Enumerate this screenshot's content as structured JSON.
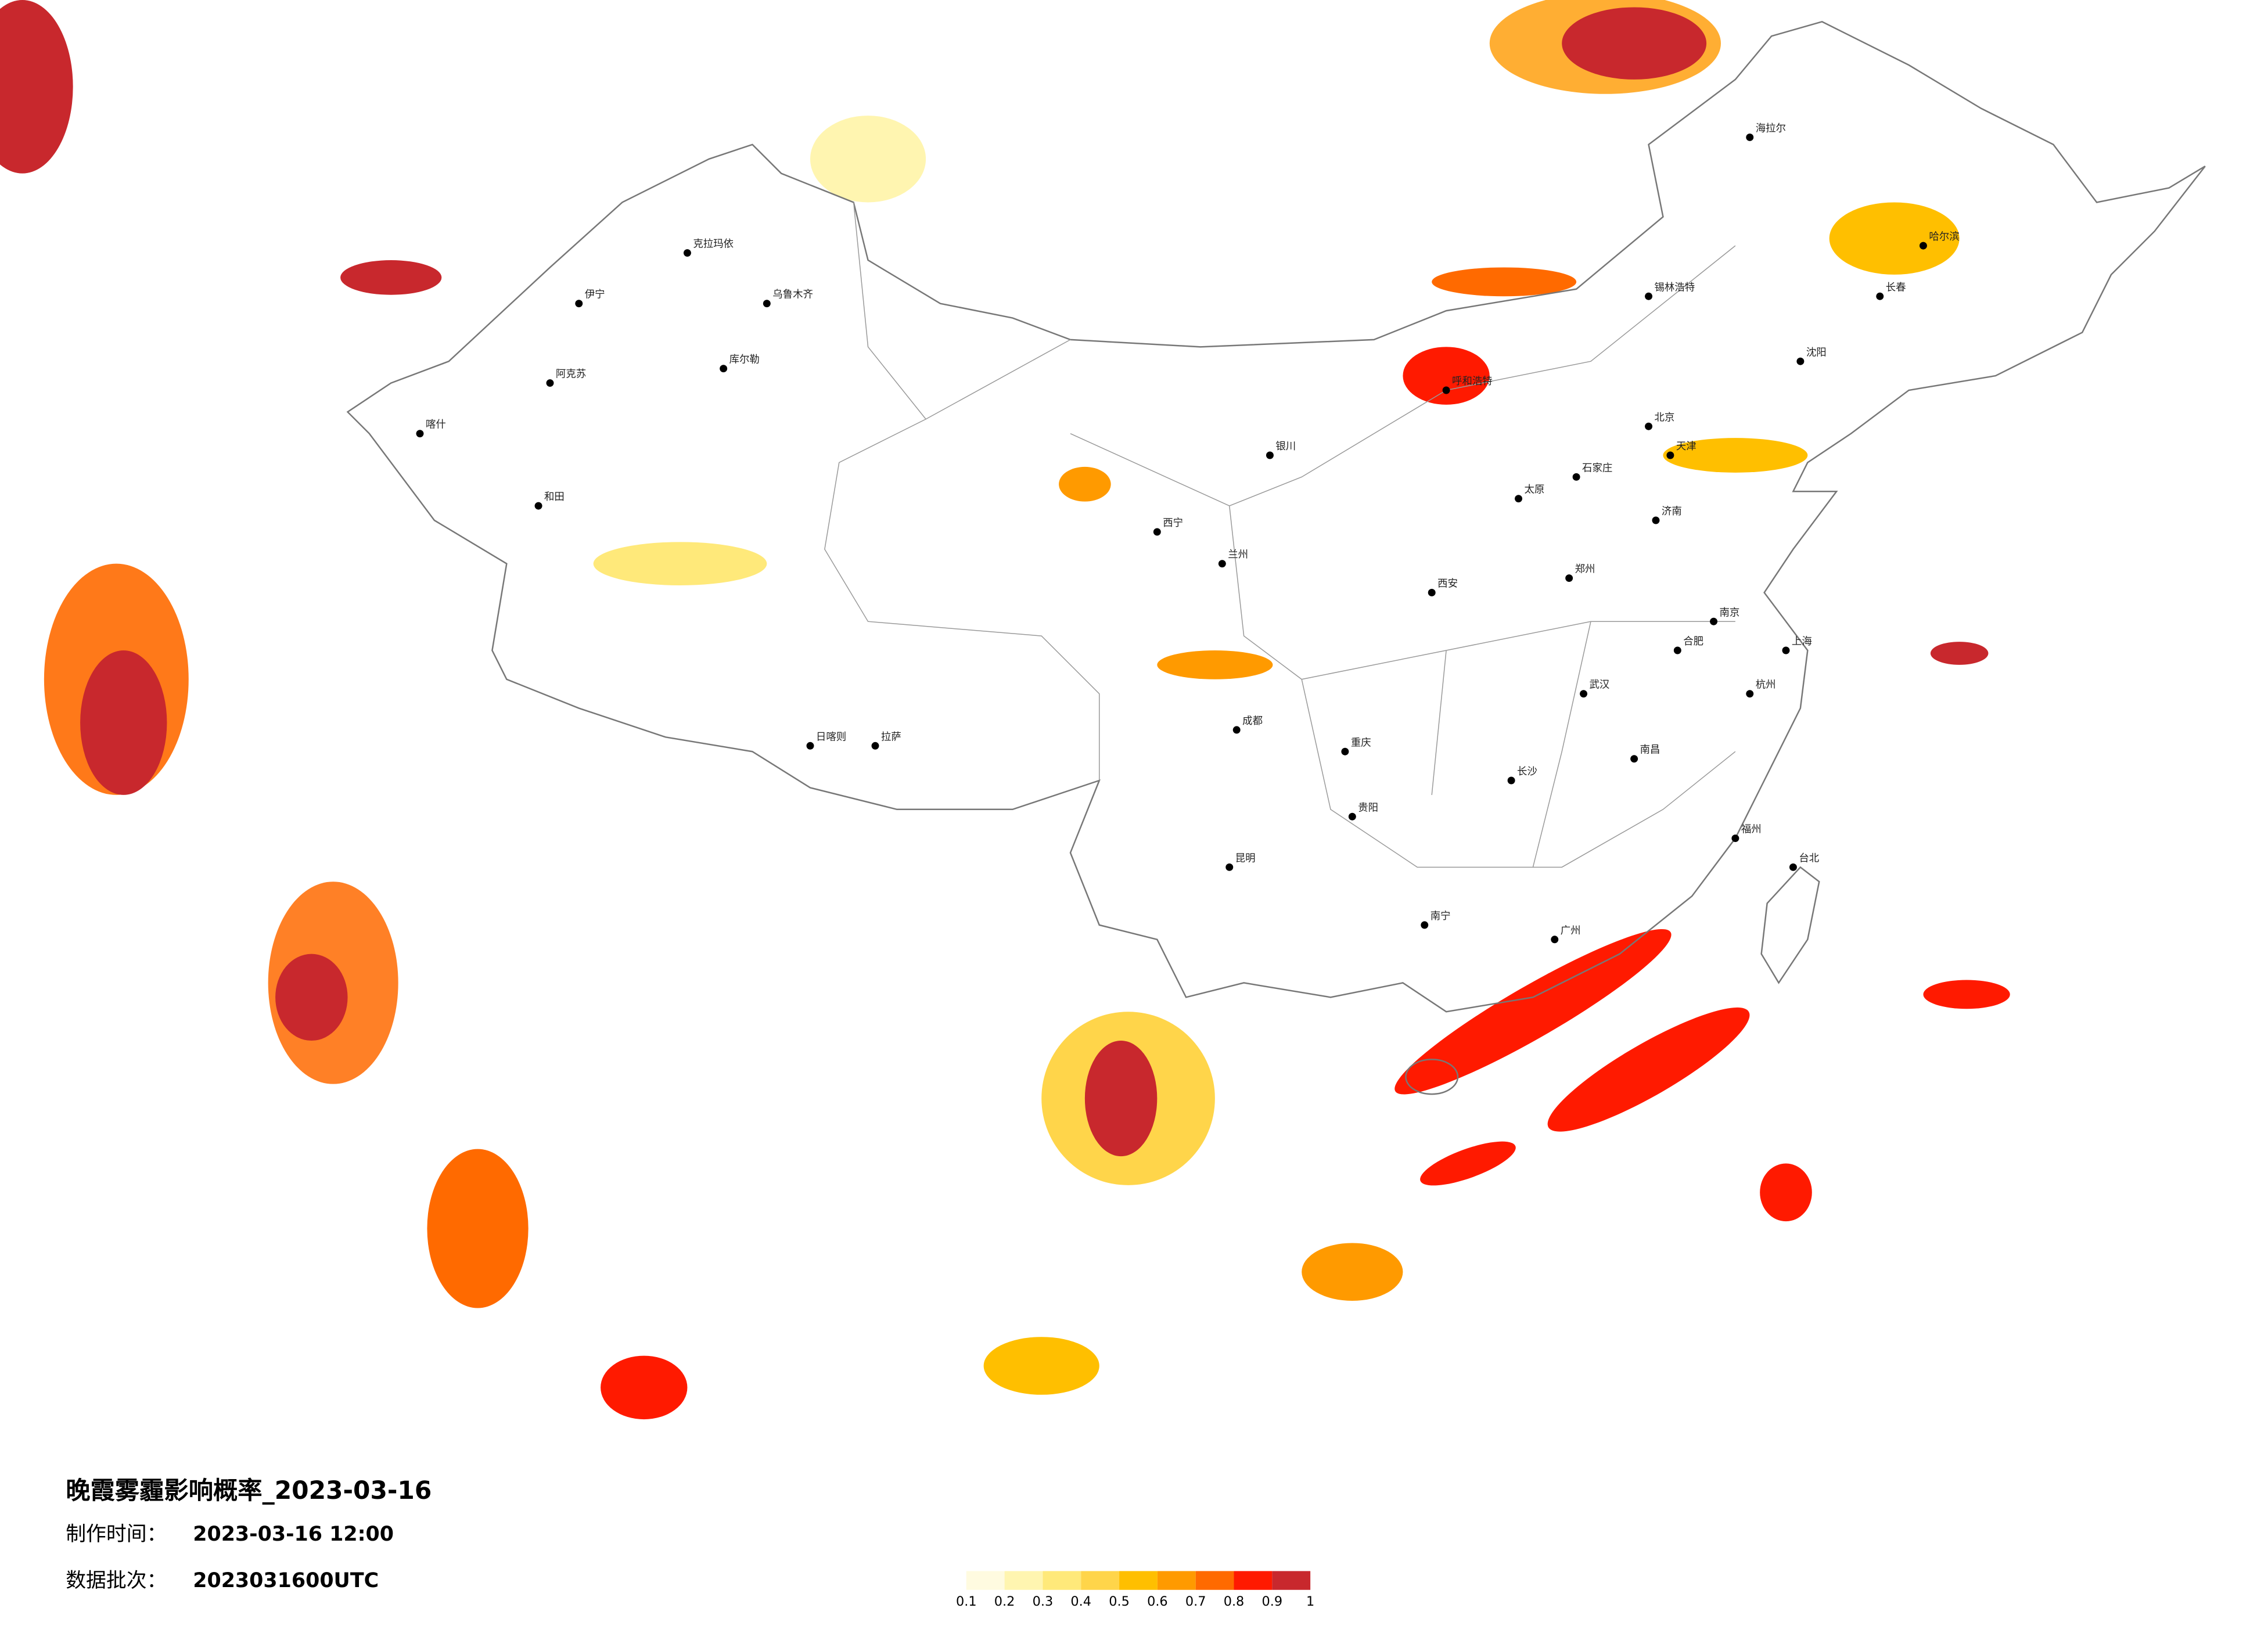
{
  "title": "晚霞雾霾影响概率_2023-03-16",
  "made_time": {
    "label": "制作时间：",
    "value": "2023-03-16 12:00"
  },
  "data_batch": {
    "label": "数据批次：",
    "value": "2023031600UTC"
  },
  "legend": {
    "bins": [
      0.1,
      0.2,
      0.3,
      0.4,
      0.5,
      0.6,
      0.7,
      0.8,
      0.9,
      1
    ],
    "colors": [
      "#fffbe0",
      "#fff5b0",
      "#ffe97a",
      "#ffd54a",
      "#ffbf00",
      "#ff9a00",
      "#ff6a00",
      "#ff1a00",
      "#c8282d"
    ]
  },
  "cities": [
    "克拉玛依",
    "乌鲁木齐",
    "伊宁",
    "阿克苏",
    "和田",
    "喀什",
    "库尔勒",
    "拉萨",
    "日喀则",
    "西宁",
    "兰州",
    "银川",
    "呼和浩特",
    "北京",
    "天津",
    "石家庄",
    "太原",
    "济南",
    "郑州",
    "西安",
    "成都",
    "重庆",
    "昆明",
    "贵阳",
    "南宁",
    "广州",
    "长沙",
    "武汉",
    "南昌",
    "合肥",
    "南京",
    "上海",
    "杭州",
    "福州",
    "台北",
    "沈阳",
    "长春",
    "哈尔滨",
    "海拉尔",
    "锡林浩特"
  ]
}
